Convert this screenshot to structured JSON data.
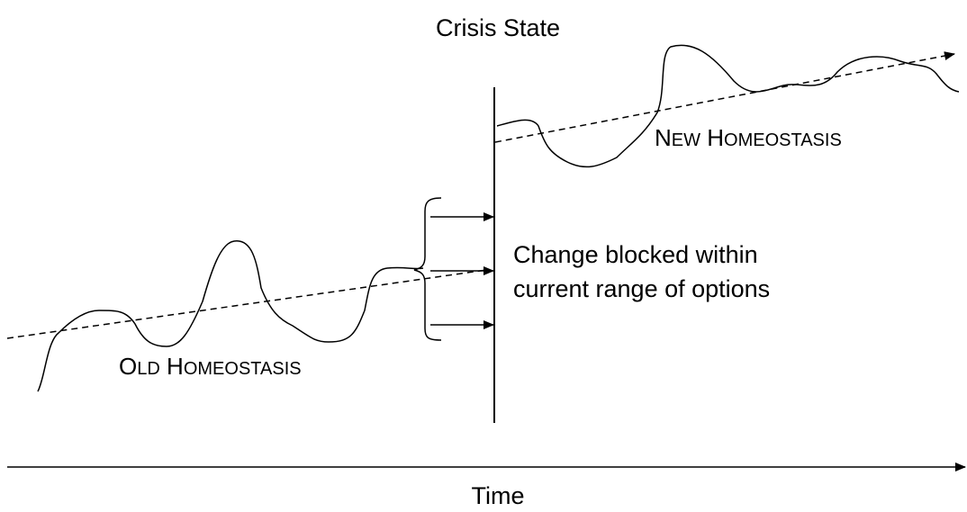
{
  "labels": {
    "crisis": "Crisis State",
    "new_big_1": "N",
    "new_small_1": "EW",
    "new_big_2": "H",
    "new_small_2": "OMEOSTASIS",
    "old_big_1": "O",
    "old_small_1": "LD",
    "old_big_2": "H",
    "old_small_2": "OMEOSTASIS",
    "blocked_line_1": "Change blocked within",
    "blocked_line_2": "current range of options",
    "time": "Time"
  }
}
